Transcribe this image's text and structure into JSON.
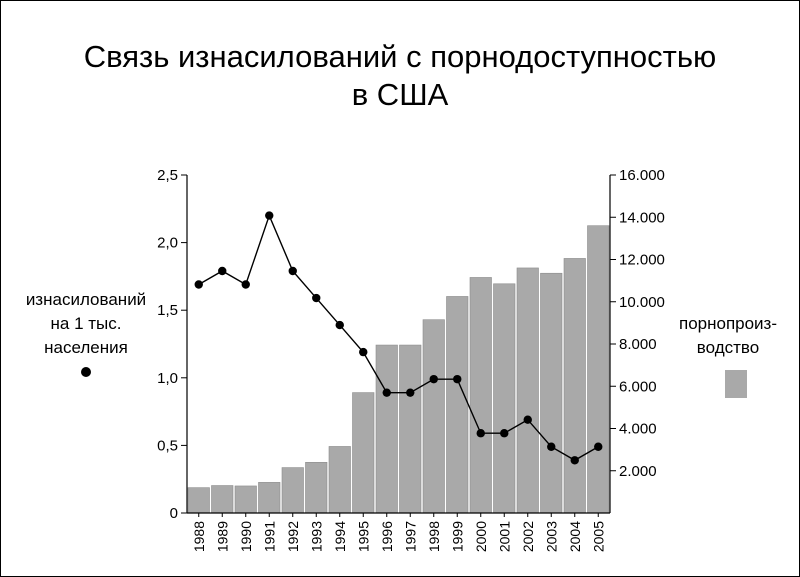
{
  "chart_data": {
    "type": "bar",
    "title_lines": [
      "Связь изнасилований с порнодоступностью",
      "в США"
    ],
    "categories": [
      "1988",
      "1989",
      "1990",
      "1991",
      "1992",
      "1993",
      "1994",
      "1995",
      "1996",
      "1997",
      "1998",
      "1999",
      "2000",
      "2001",
      "2002",
      "2003",
      "2004",
      "2005"
    ],
    "left_axis": {
      "label_lines": [
        "изнасилований",
        "на 1 тыс.",
        "населения"
      ],
      "ylim": [
        0,
        2.5
      ],
      "ticks": [
        0,
        0.5,
        1.0,
        1.5,
        2.0,
        2.5
      ],
      "tick_labels": [
        "0",
        "0,5",
        "1,0",
        "1,5",
        "2,0",
        "2,5"
      ]
    },
    "right_axis": {
      "label_lines": [
        "порнопроиз-",
        "водство"
      ],
      "ylim": [
        0,
        16000
      ],
      "ticks": [
        2000,
        4000,
        6000,
        8000,
        10000,
        12000,
        14000,
        16000
      ],
      "tick_labels": [
        "2.000",
        "4.000",
        "6.000",
        "8.000",
        "10.000",
        "12.000",
        "14.000",
        "16.000"
      ]
    },
    "series": [
      {
        "type": "bar",
        "axis": "right",
        "color": "#a9a9a9",
        "values": [
          1200,
          1300,
          1280,
          1450,
          2150,
          2400,
          3150,
          5700,
          7950,
          7950,
          9150,
          10250,
          11150,
          10850,
          11600,
          11350,
          12050,
          13600
        ]
      },
      {
        "type": "line",
        "axis": "left",
        "color": "#000000",
        "values": [
          1.69,
          1.79,
          1.69,
          2.2,
          1.79,
          1.59,
          1.39,
          1.19,
          0.89,
          0.89,
          0.99,
          0.99,
          0.59,
          0.59,
          0.69,
          0.49,
          0.39,
          0.49
        ]
      }
    ],
    "grid": false
  }
}
